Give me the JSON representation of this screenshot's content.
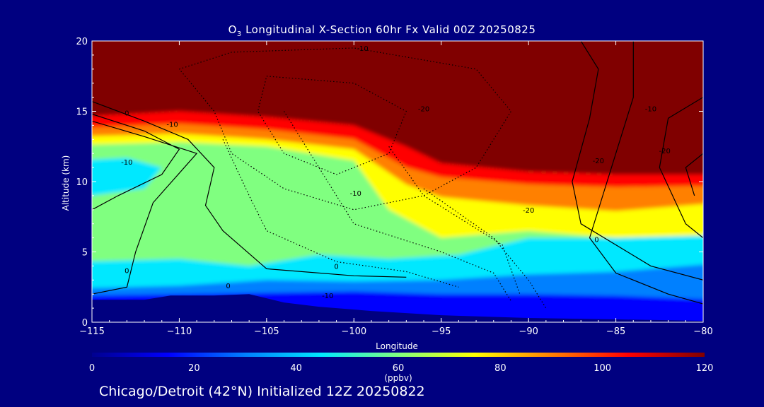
{
  "chart_data": {
    "type": "heatmap",
    "title_species": "O",
    "title_species_sub": "3",
    "title_rest": " Longitudinal X-Section 60hr  Fx Valid 00Z 20250825",
    "xlabel": "Longitude",
    "ylabel": "Altitude (km)",
    "xlim": [
      -115,
      -80
    ],
    "ylim": [
      0,
      20
    ],
    "x_ticks": [
      -115,
      -110,
      -105,
      -100,
      -95,
      -90,
      -85,
      -80
    ],
    "x_tick_labels": [
      "−115",
      "−110",
      "−105",
      "−100",
      "−95",
      "−90",
      "−85",
      "−80"
    ],
    "y_ticks": [
      0,
      5,
      10,
      15,
      20
    ],
    "y_tick_labels": [
      "0",
      "5",
      "10",
      "15",
      "20"
    ],
    "colorbar": {
      "ticks": [
        0,
        20,
        40,
        60,
        80,
        100,
        120
      ],
      "tick_labels": [
        "0",
        "20",
        "40",
        "60",
        "80",
        "100",
        "120"
      ],
      "range": [
        0,
        120
      ],
      "unit_label": "(ppbv)"
    },
    "field": {
      "description_units": "ppbv",
      "tropopause_height_km": [
        [
          -115,
          13.9
        ],
        [
          -110,
          14.3
        ],
        [
          -105,
          14.1
        ],
        [
          -100,
          13.2
        ],
        [
          -97,
          11.5
        ],
        [
          -95,
          10.5
        ],
        [
          -90,
          9.8
        ],
        [
          -85,
          9.5
        ],
        [
          -80,
          9.5
        ]
      ],
      "boundary_layer_top_km": [
        [
          -115,
          1.8
        ],
        [
          -100,
          2.5
        ],
        [
          -95,
          2.0
        ],
        [
          -90,
          2.0
        ],
        [
          -85,
          2.0
        ],
        [
          -80,
          1.5
        ]
      ],
      "surface_elevation_km": [
        [
          -115,
          1.6
        ],
        [
          -112,
          1.6
        ],
        [
          -110.5,
          1.9
        ],
        [
          -108,
          1.9
        ],
        [
          -106,
          2.0
        ],
        [
          -104,
          1.4
        ],
        [
          -102,
          1.1
        ],
        [
          -99,
          0.8
        ],
        [
          -95,
          0.5
        ],
        [
          -90,
          0.3
        ],
        [
          -85,
          0.2
        ],
        [
          -80,
          0.1
        ]
      ]
    },
    "contour_labels": [
      "-10",
      "-20",
      "-10",
      "-10",
      "0",
      "-10",
      "-20",
      "0",
      "0",
      "-10",
      "-20",
      "0",
      "0",
      "-10",
      "-20"
    ],
    "colors": {
      "background": "#000080",
      "colormap": [
        "#00008f",
        "#0000ff",
        "#0080ff",
        "#00e8ff",
        "#80ff80",
        "#ffff00",
        "#ff8000",
        "#ff0000",
        "#800000"
      ]
    }
  },
  "footer": "Chicago/Detroit (42°N) Initialized 12Z 20250822"
}
